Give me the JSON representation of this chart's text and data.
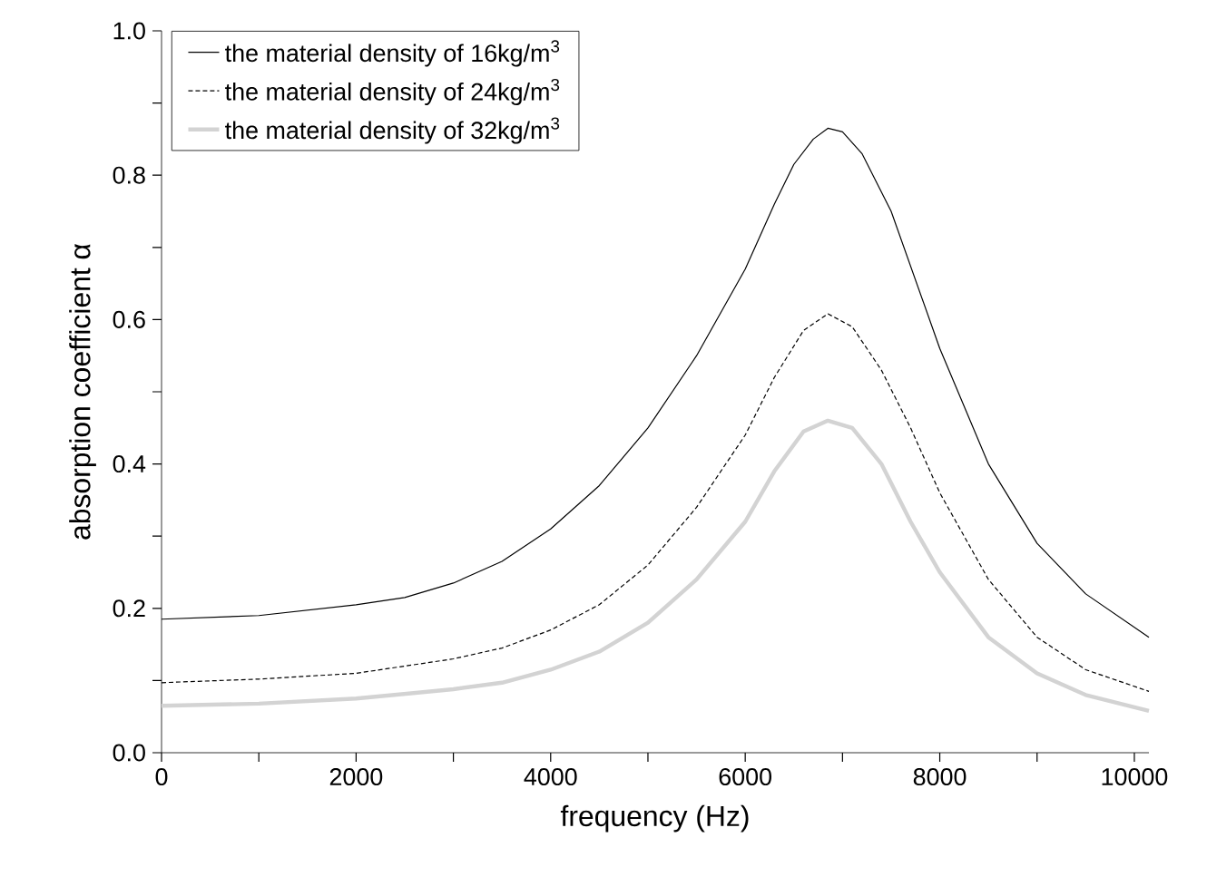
{
  "chart_data": {
    "type": "line",
    "xlabel": "frequency (Hz)",
    "ylabel": "absorption coefficient α",
    "xlim": [
      0,
      10150
    ],
    "ylim": [
      0,
      1.0
    ],
    "xticks": [
      0,
      {
        "value": 1000,
        "label": null
      },
      2000,
      {
        "value": 3000,
        "label": null
      },
      4000,
      {
        "value": 5000,
        "label": null
      },
      6000,
      {
        "value": 7000,
        "label": null
      },
      8000,
      {
        "value": 9000,
        "label": null
      },
      10000
    ],
    "yticks": [
      {
        "value": 0,
        "label": "0.0"
      },
      {
        "value": 0.1,
        "label": null
      },
      0.2,
      {
        "value": 0.3,
        "label": null
      },
      0.4,
      {
        "value": 0.5,
        "label": null
      },
      0.6,
      {
        "value": 0.7,
        "label": null
      },
      0.8,
      {
        "value": 0.9,
        "label": null
      },
      {
        "value": 1.0,
        "label": "1.0"
      }
    ],
    "grid": false,
    "legend": "top left",
    "marker": "none",
    "series": [
      {
        "name": "the material density of 16kg/m$^{3}$",
        "color": "#000000",
        "line_style": "solid",
        "x": [
          0,
          1000,
          2000,
          2500,
          3000,
          3500,
          4000,
          4500,
          5000,
          5500,
          6000,
          6300,
          6500,
          6700,
          6850,
          7000,
          7200,
          7500,
          8000,
          8500,
          9000,
          9500,
          10150
        ],
        "values": [
          0.185,
          0.19,
          0.205,
          0.215,
          0.235,
          0.265,
          0.31,
          0.37,
          0.45,
          0.55,
          0.67,
          0.76,
          0.815,
          0.85,
          0.865,
          0.86,
          0.83,
          0.75,
          0.56,
          0.4,
          0.29,
          0.22,
          0.16
        ]
      },
      {
        "name": "the material density of 24kg/m$^{3}$",
        "color": "#000000",
        "line_style": "dashed",
        "x": [
          0,
          1000,
          2000,
          3000,
          3500,
          4000,
          4500,
          5000,
          5500,
          6000,
          6300,
          6600,
          6850,
          7100,
          7400,
          7700,
          8000,
          8500,
          9000,
          9500,
          10150
        ],
        "values": [
          0.097,
          0.102,
          0.11,
          0.13,
          0.145,
          0.17,
          0.205,
          0.26,
          0.34,
          0.44,
          0.52,
          0.585,
          0.608,
          0.59,
          0.53,
          0.45,
          0.36,
          0.24,
          0.16,
          0.115,
          0.085
        ]
      },
      {
        "name": "the material density of 32kg/m$^{3}$",
        "color": "#d3d3d3",
        "line_style": "solid",
        "x": [
          0,
          1000,
          2000,
          3000,
          3500,
          4000,
          4500,
          5000,
          5500,
          6000,
          6300,
          6600,
          6850,
          7100,
          7400,
          7700,
          8000,
          8500,
          9000,
          9500,
          10150
        ],
        "values": [
          0.065,
          0.068,
          0.075,
          0.088,
          0.097,
          0.115,
          0.14,
          0.18,
          0.24,
          0.32,
          0.39,
          0.445,
          0.46,
          0.45,
          0.4,
          0.32,
          0.25,
          0.16,
          0.11,
          0.08,
          0.058
        ]
      }
    ]
  }
}
